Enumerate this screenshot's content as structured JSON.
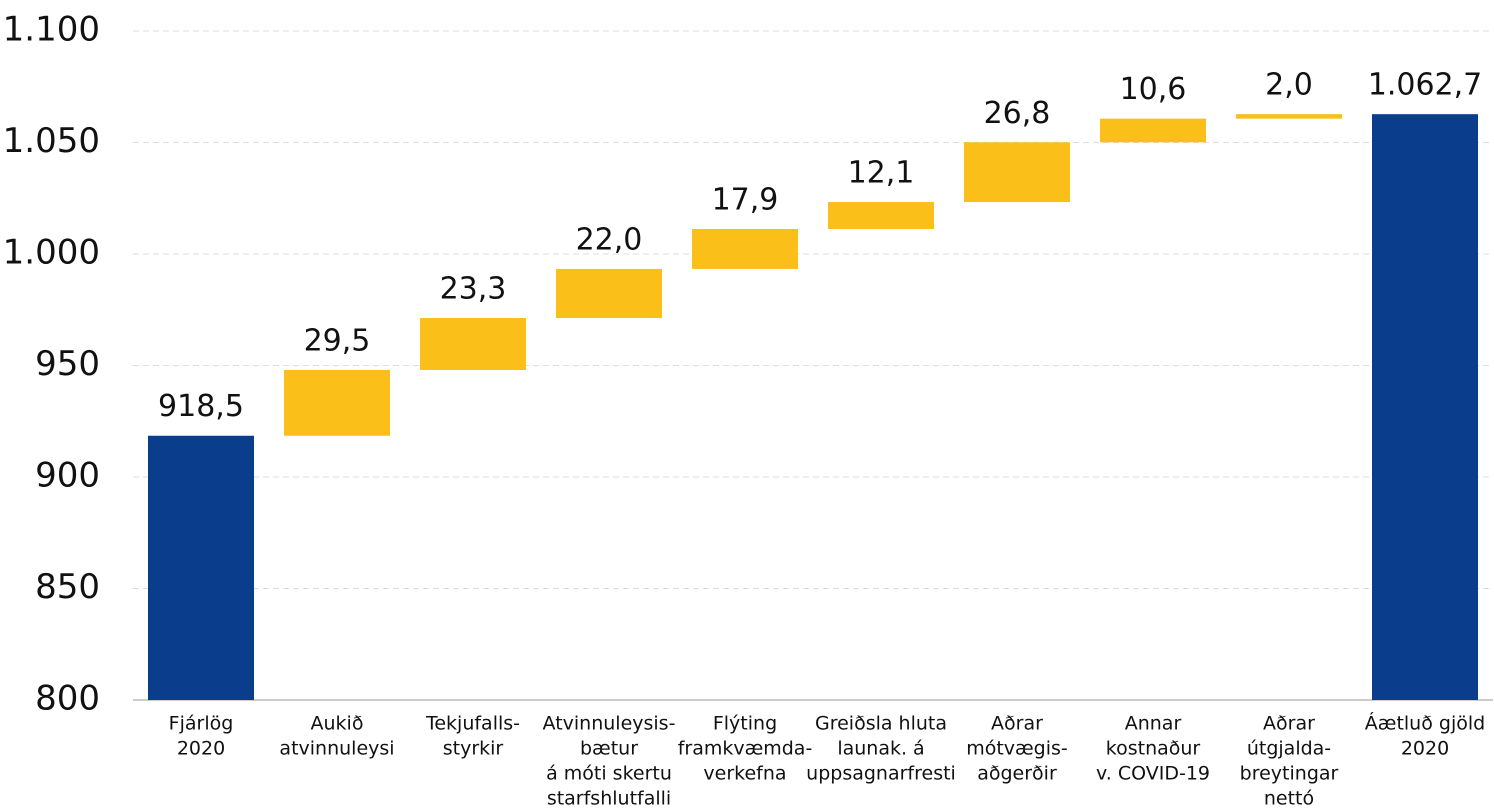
{
  "chart_data": {
    "type": "waterfall",
    "categories": [
      [
        "Fjárlög",
        "2020"
      ],
      [
        "Aukið",
        "atvinnuleysi"
      ],
      [
        "Tekjufalls-",
        "styrkir"
      ],
      [
        "Atvinnuleysis-",
        "bætur",
        "á móti skertu",
        "starfshlutfalli"
      ],
      [
        "Flýting",
        "framkvæmda-",
        "verkefna"
      ],
      [
        "Greiðsla hluta",
        "launak. á",
        "uppsagnarfresti"
      ],
      [
        "Aðrar",
        "mótvægis-",
        "aðgerðir"
      ],
      [
        "Annar",
        "kostnaður",
        "v. COVID-19"
      ],
      [
        "Aðrar",
        "útgjalda-",
        "breytingar",
        "nettó"
      ],
      [
        "Áætluð gjöld",
        "2020"
      ]
    ],
    "values": [
      918.5,
      29.5,
      23.3,
      22.0,
      17.9,
      12.1,
      26.8,
      10.6,
      2.0,
      1062.7
    ],
    "value_labels": [
      "918,5",
      "29,5",
      "23,3",
      "22,0",
      "17,9",
      "12,1",
      "26,8",
      "10,6",
      "2,0",
      "1.062,7"
    ],
    "color": "#fbbf1a",
    "total_color": "#0a3d8c",
    "ylim": [
      800,
      1100
    ],
    "yticks": [
      800,
      850,
      900,
      950,
      {
        "value": 1000,
        "label": "1.000"
      },
      {
        "value": 1050,
        "label": "1.050"
      },
      {
        "value": 1100,
        "label": "1.100"
      }
    ],
    "grid": true
  }
}
